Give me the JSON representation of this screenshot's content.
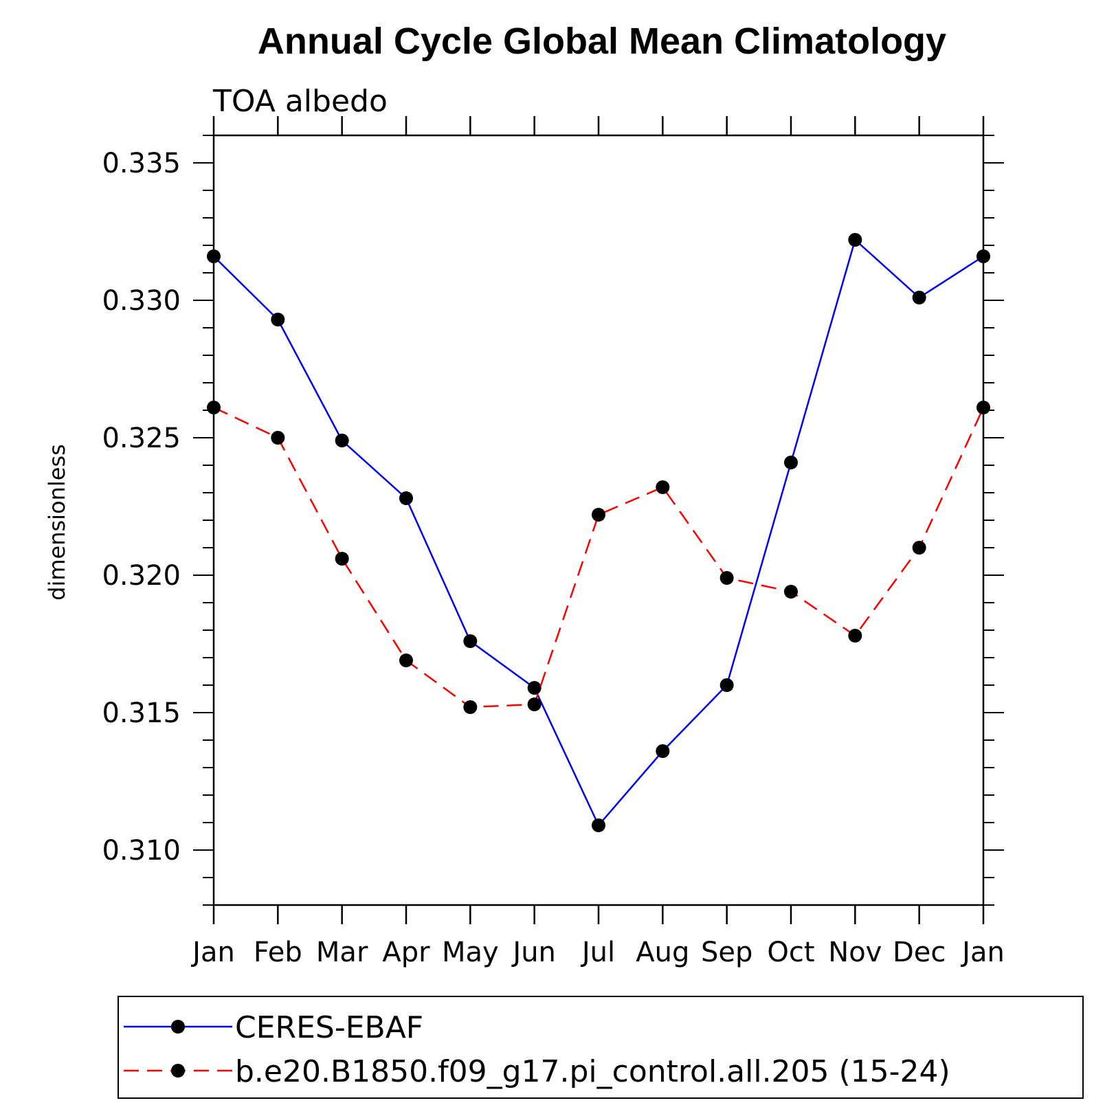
{
  "chart_data": {
    "type": "line",
    "title": "Annual Cycle Global Mean Climatology",
    "subtitle": "TOA albedo",
    "xlabel": "",
    "ylabel": "dimensionless",
    "categories": [
      "Jan",
      "Feb",
      "Mar",
      "Apr",
      "May",
      "Jun",
      "Jul",
      "Aug",
      "Sep",
      "Oct",
      "Nov",
      "Dec",
      "Jan"
    ],
    "ylim": [
      0.308,
      0.336
    ],
    "yticks": [
      "0.310",
      "0.315",
      "0.320",
      "0.325",
      "0.330",
      "0.335"
    ],
    "ytick_values": [
      0.31,
      0.315,
      0.32,
      0.325,
      0.33,
      0.335
    ],
    "series": [
      {
        "name": "CERES-EBAF",
        "color": "#0000ff",
        "dash": "solid",
        "values": [
          0.3316,
          0.3293,
          0.3249,
          0.3228,
          0.3176,
          0.3159,
          0.3109,
          0.3136,
          0.316,
          0.3241,
          0.3322,
          0.3301,
          0.3316
        ]
      },
      {
        "name": "b.e20.B1850.f09_g17.pi_control.all.205 (15-24)",
        "color": "#ff0000",
        "dash": "dashed",
        "values": [
          0.3261,
          0.325,
          0.3206,
          0.3169,
          0.3152,
          0.3153,
          0.3222,
          0.3232,
          0.3199,
          0.3194,
          0.3178,
          0.321,
          0.3261
        ]
      }
    ],
    "grid": false,
    "legend_position": "bottom"
  }
}
